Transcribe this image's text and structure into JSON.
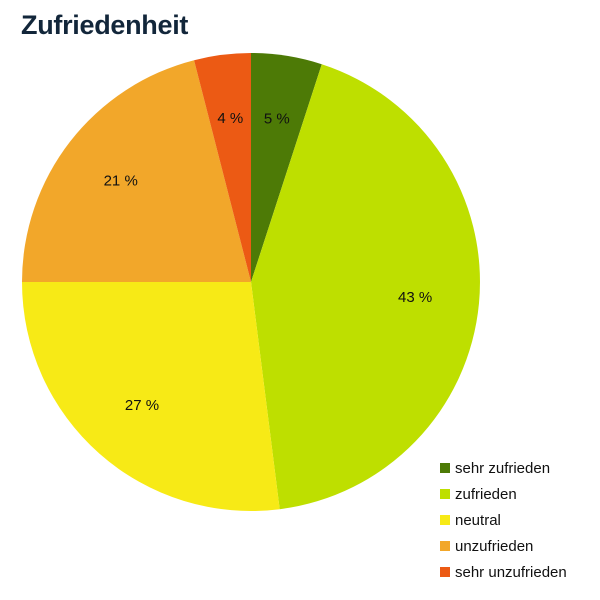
{
  "chart_data": {
    "type": "pie",
    "title": "Zufriedenheit",
    "categories": [
      "sehr zufrieden",
      "zufrieden",
      "neutral",
      "unzufrieden",
      "sehr unzufrieden"
    ],
    "values": [
      5,
      43,
      27,
      21,
      4
    ],
    "data_labels": [
      "5 %",
      "43 %",
      "27 %",
      "21 %",
      "4 %"
    ],
    "colors": [
      "#4d7a06",
      "#bedf00",
      "#f7ea16",
      "#f2a72a",
      "#ec5a14"
    ],
    "start": "12 o'clock",
    "direction": "clockwise",
    "legend_position": "bottom-right"
  }
}
